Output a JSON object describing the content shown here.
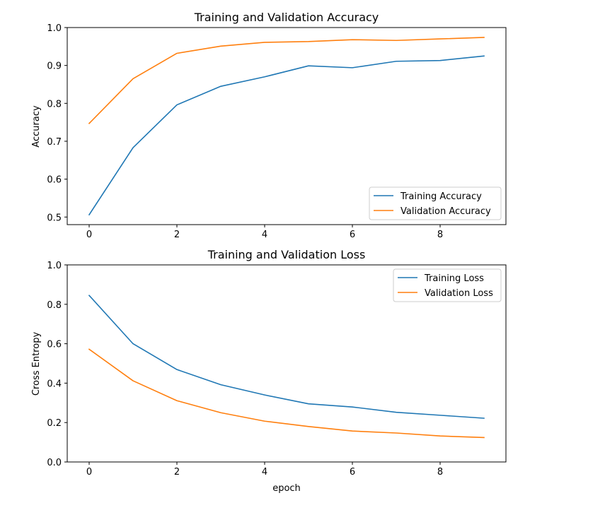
{
  "chart_data": [
    {
      "type": "line",
      "title": "Training and Validation Accuracy",
      "xlabel": "",
      "ylabel": "Accuracy",
      "x": [
        0,
        1,
        2,
        3,
        4,
        5,
        6,
        7,
        8,
        9
      ],
      "xlim": [
        -0.5,
        9.5
      ],
      "ylim": [
        0.48,
        1.0
      ],
      "xticks": [
        0,
        2,
        4,
        6,
        8
      ],
      "yticks": [
        0.5,
        0.6,
        0.7,
        0.8,
        0.9,
        1.0
      ],
      "ytick_labels": [
        "0.5",
        "0.6",
        "0.7",
        "0.8",
        "0.9",
        "1.0"
      ],
      "grid": false,
      "legend_position": "bottom-right",
      "series": [
        {
          "name": "Training Accuracy",
          "color": "#1f77b4",
          "values": [
            0.506,
            0.683,
            0.796,
            0.845,
            0.87,
            0.899,
            0.894,
            0.911,
            0.913,
            0.925
          ]
        },
        {
          "name": "Validation Accuracy",
          "color": "#ff7f0e",
          "values": [
            0.747,
            0.865,
            0.932,
            0.951,
            0.961,
            0.963,
            0.968,
            0.966,
            0.97,
            0.974
          ]
        }
      ]
    },
    {
      "type": "line",
      "title": "Training and Validation Loss",
      "xlabel": "epoch",
      "ylabel": "Cross Entropy",
      "x": [
        0,
        1,
        2,
        3,
        4,
        5,
        6,
        7,
        8,
        9
      ],
      "xlim": [
        -0.5,
        9.5
      ],
      "ylim": [
        0.0,
        1.0
      ],
      "xticks": [
        0,
        2,
        4,
        6,
        8
      ],
      "yticks": [
        0.0,
        0.2,
        0.4,
        0.6,
        0.8,
        1.0
      ],
      "ytick_labels": [
        "0.0",
        "0.2",
        "0.4",
        "0.6",
        "0.8",
        "1.0"
      ],
      "grid": false,
      "legend_position": "top-right",
      "series": [
        {
          "name": "Training Loss",
          "color": "#1f77b4",
          "values": [
            0.845,
            0.6,
            0.469,
            0.392,
            0.34,
            0.295,
            0.279,
            0.252,
            0.237,
            0.222
          ]
        },
        {
          "name": "Validation Loss",
          "color": "#ff7f0e",
          "values": [
            0.572,
            0.412,
            0.311,
            0.25,
            0.207,
            0.18,
            0.157,
            0.147,
            0.132,
            0.124
          ]
        }
      ]
    }
  ]
}
